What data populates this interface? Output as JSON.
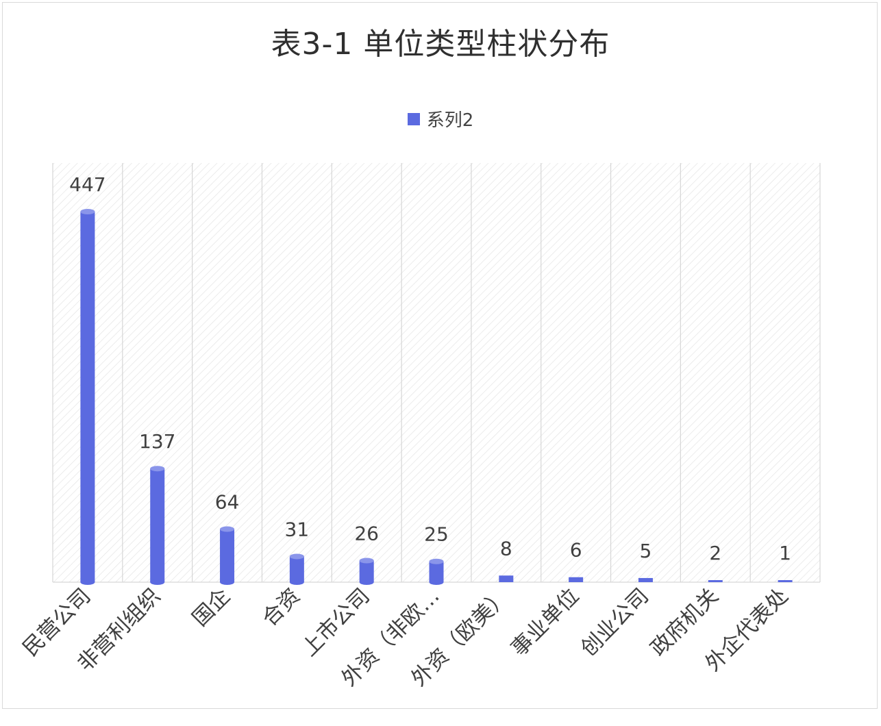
{
  "chart_data": {
    "type": "bar",
    "title": "表3-1 单位类型柱状分布",
    "legend_position": "top-center",
    "series": [
      {
        "name": "系列2",
        "color": "#5b6ae0",
        "values": [
          447,
          137,
          64,
          31,
          26,
          25,
          8,
          6,
          5,
          2,
          1
        ]
      }
    ],
    "categories": [
      "民营公司",
      "非营利组织",
      "国企",
      "合资",
      "上市公司",
      "外资（非欧…",
      "外资（欧美）",
      "事业单位",
      "创业公司",
      "政府机关",
      "外企代表处"
    ],
    "data_labels": [
      "447",
      "137",
      "64",
      "31",
      "26",
      "25",
      "8",
      "6",
      "5",
      "2",
      "1"
    ],
    "ylim": [
      0,
      500
    ],
    "grid": "vertical",
    "colors": {
      "bar": "#5b6ae0",
      "bar_cap": "#8a95ea",
      "grid": "#d6d6d6",
      "hatch": "#e4e4e4",
      "text": "#404040",
      "frame": "#d9d9d9"
    }
  }
}
